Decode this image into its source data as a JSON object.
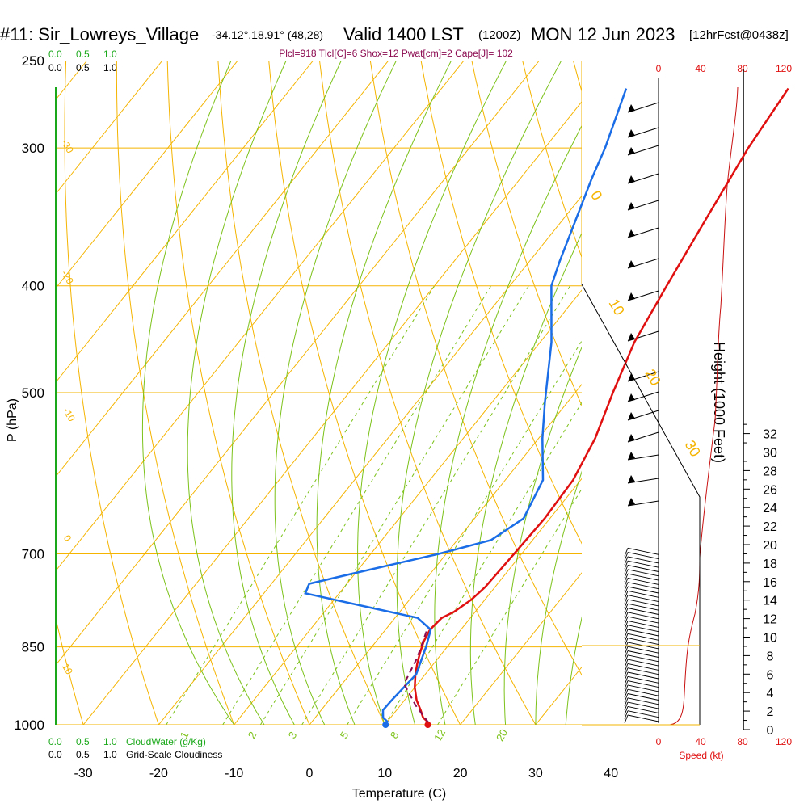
{
  "header": {
    "station": "#11: Sir_Lowreys_Village",
    "coords": "-34.12°,18.91° (48,28)",
    "valid": "Valid 1400 LST",
    "utc": "(1200Z)",
    "date": "MON 12 Jun 2023",
    "forecast": "[12hrFcst@0438z]",
    "indices": "Plcl=918 Tlcl[C]=6 Shox=12 Pwat[cm]=2 Cape[J]= 102"
  },
  "colors": {
    "isotherm": "#f5b400",
    "dry_adiabat": "#f5b400",
    "moist_adiabat": "#7cc21a",
    "mixing_ratio": "#7cc21a",
    "temperature": "#e01010",
    "dewpoint": "#1a6de6",
    "parcel": "#8b0a50",
    "cloud_water": "#1aa81a",
    "wind_scale": "#e01010",
    "indices_text": "#8b0a50"
  },
  "top_scales": {
    "cloudwater_ticks": [
      "0.0",
      "0.5",
      "1.0"
    ],
    "cloudiness_ticks": [
      "0.0",
      "0.5",
      "1.0"
    ],
    "wind_ticks": [
      "0",
      "40",
      "80",
      "120"
    ]
  },
  "bottom_scales": {
    "cloudwater_ticks": [
      "0.0",
      "0.5",
      "1.0"
    ],
    "cloudwater_label": "CloudWater (g/Kg)",
    "cloudiness_ticks": [
      "0.0",
      "0.5",
      "1.0"
    ],
    "cloudiness_label": "Grid-Scale Cloudiness",
    "wind_ticks": [
      "0",
      "40",
      "80",
      "120"
    ],
    "wind_label": "Speed (kt)"
  },
  "chart_data": {
    "type": "skew-t log-p sounding",
    "xlabel": "Temperature (C)",
    "ylabel": "P (hPa)",
    "y2label": "Height (1000 Feet)",
    "xlim": [
      -35,
      44
    ],
    "ylim": [
      1000,
      250
    ],
    "x_ticks": [
      -30,
      -20,
      -10,
      0,
      10,
      20,
      30,
      40
    ],
    "pressure_ticks": [
      1000,
      850,
      700,
      500,
      400,
      300,
      250
    ],
    "height_ticks": [
      0,
      2,
      4,
      6,
      8,
      10,
      12,
      14,
      16,
      18,
      20,
      22,
      24,
      26,
      28,
      30,
      32
    ],
    "dry_adiabat_labels": [
      "-30",
      "-20",
      "-10",
      "0",
      "10",
      "0",
      "10",
      "20",
      "30"
    ],
    "mixing_ratio_labels": [
      "1",
      "2",
      "3",
      "5",
      "8",
      "12",
      "20"
    ],
    "temperature": [
      {
        "p": 995,
        "t": 15.5
      },
      {
        "p": 985,
        "t": 14.3
      },
      {
        "p": 970,
        "t": 13.2
      },
      {
        "p": 950,
        "t": 11.6
      },
      {
        "p": 925,
        "t": 10.0
      },
      {
        "p": 900,
        "t": 8.7
      },
      {
        "p": 880,
        "t": 7.8
      },
      {
        "p": 860,
        "t": 7.0
      },
      {
        "p": 840,
        "t": 6.3
      },
      {
        "p": 820,
        "t": 5.9
      },
      {
        "p": 800,
        "t": 6.2
      },
      {
        "p": 790,
        "t": 7.2
      },
      {
        "p": 770,
        "t": 8.2
      },
      {
        "p": 750,
        "t": 8.7
      },
      {
        "p": 700,
        "t": 9.0
      },
      {
        "p": 650,
        "t": 9.3
      },
      {
        "p": 600,
        "t": 9.0
      },
      {
        "p": 550,
        "t": 7.5
      },
      {
        "p": 500,
        "t": 5.0
      },
      {
        "p": 450,
        "t": 2.5
      },
      {
        "p": 400,
        "t": 0.8
      },
      {
        "p": 350,
        "t": -1.0
      },
      {
        "p": 300,
        "t": -3.0
      },
      {
        "p": 265,
        "t": -4.0
      }
    ],
    "dewpoint": [
      {
        "p": 995,
        "t": 10.2
      },
      {
        "p": 985,
        "t": 9.0
      },
      {
        "p": 970,
        "t": 8.2
      },
      {
        "p": 950,
        "t": 8.3
      },
      {
        "p": 900,
        "t": 8.8
      },
      {
        "p": 850,
        "t": 7.2
      },
      {
        "p": 820,
        "t": 6.0
      },
      {
        "p": 800,
        "t": 3.0
      },
      {
        "p": 785,
        "t": -3.5
      },
      {
        "p": 760,
        "t": -14.5
      },
      {
        "p": 745,
        "t": -15.0
      },
      {
        "p": 730,
        "t": -10.5
      },
      {
        "p": 700,
        "t": -1.0
      },
      {
        "p": 680,
        "t": 4.5
      },
      {
        "p": 650,
        "t": 6.5
      },
      {
        "p": 600,
        "t": 5.0
      },
      {
        "p": 550,
        "t": 0.5
      },
      {
        "p": 510,
        "t": -3.0
      },
      {
        "p": 450,
        "t": -8.5
      },
      {
        "p": 400,
        "t": -14.5
      },
      {
        "p": 380,
        "t": -16.0
      },
      {
        "p": 320,
        "t": -20.5
      },
      {
        "p": 300,
        "t": -22.0
      },
      {
        "p": 265,
        "t": -25.5
      }
    ],
    "parcel": [
      {
        "p": 995,
        "t": 15.5
      },
      {
        "p": 960,
        "t": 12.0
      },
      {
        "p": 918,
        "t": 8.2
      },
      {
        "p": 870,
        "t": 7.2
      },
      {
        "p": 820,
        "t": 5.5
      }
    ],
    "surface_markers": [
      {
        "series": "temperature",
        "p": 1000,
        "t": 15.7
      },
      {
        "series": "dewpoint",
        "p": 1000,
        "t": 10.1
      }
    ]
  }
}
